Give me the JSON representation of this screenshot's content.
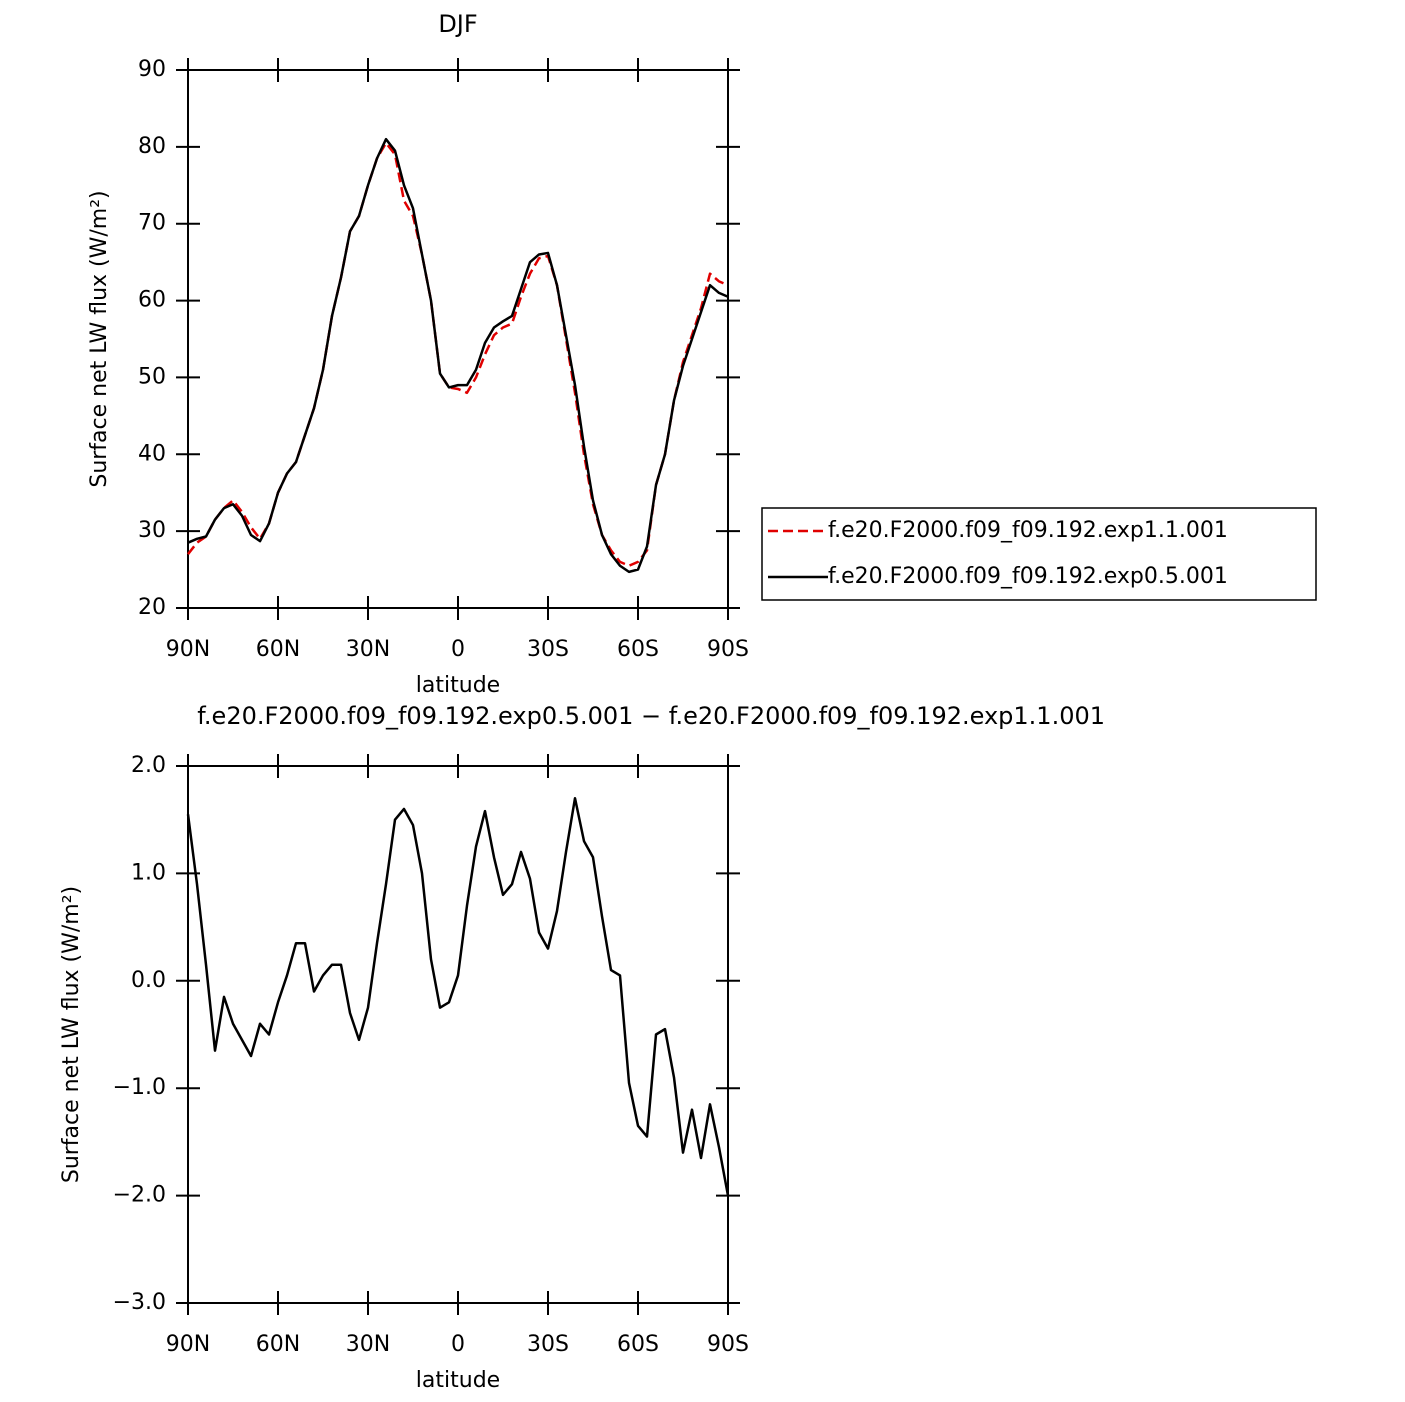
{
  "chart_data": [
    {
      "type": "line",
      "title": "DJF",
      "xlabel": "latitude",
      "ylabel": "Surface net LW flux (W/m²)",
      "legend": "right",
      "x": [
        90,
        87,
        84,
        81,
        78,
        75,
        72,
        69,
        66,
        63,
        60,
        57,
        54,
        51,
        48,
        45,
        42,
        39,
        36,
        33,
        30,
        27,
        24,
        21,
        18,
        15,
        12,
        9,
        6,
        3,
        0,
        -3,
        -6,
        -9,
        -12,
        -15,
        -18,
        -21,
        -24,
        -27,
        -30,
        -33,
        -36,
        -39,
        -42,
        -45,
        -48,
        -51,
        -54,
        -57,
        -60,
        -63,
        -66,
        -69,
        -72,
        -75,
        -78,
        -81,
        -84,
        -87,
        -90
      ],
      "xlim": [
        90,
        -90
      ],
      "xticks": [
        {
          "value": 90,
          "label": "90N"
        },
        {
          "value": 60,
          "label": "60N"
        },
        {
          "value": 30,
          "label": "30N"
        },
        0,
        {
          "value": -30,
          "label": "30S"
        },
        {
          "value": -60,
          "label": "60S"
        },
        {
          "value": -90,
          "label": "90S"
        }
      ],
      "ylim": [
        20,
        90
      ],
      "yticks": [
        20,
        30,
        40,
        50,
        60,
        70,
        80,
        90
      ],
      "series": [
        {
          "name": "f.e20.F2000.f09_f09.192.exp1.1.001",
          "color": "#e00000",
          "dash": true,
          "values": [
            27,
            28.5,
            29.3,
            31.5,
            33,
            34,
            32.5,
            30.5,
            29,
            31,
            35,
            37.5,
            39,
            42.5,
            46,
            51,
            58,
            63,
            69,
            71,
            75,
            78.5,
            80.5,
            79,
            73,
            71,
            66,
            60,
            50.5,
            48.7,
            48.5,
            48,
            50,
            53,
            55.5,
            56.5,
            57,
            60.5,
            63.5,
            65.5,
            65.8,
            62,
            55,
            48,
            40,
            33.5,
            29.5,
            27.5,
            26,
            25.5,
            26,
            27.5,
            36,
            40,
            47,
            52,
            55.5,
            59,
            63.5,
            62.5,
            62
          ]
        },
        {
          "name": "f.e20.F2000.f09_f09.192.exp0.5.001",
          "color": "#000000",
          "dash": false,
          "values": [
            28.5,
            29,
            29.3,
            31.5,
            33,
            33.5,
            32,
            29.5,
            28.7,
            31,
            35,
            37.5,
            39,
            42.5,
            46,
            51,
            58,
            63,
            69,
            71,
            75,
            78.5,
            81,
            79.5,
            75,
            72,
            66,
            60,
            50.5,
            48.7,
            49,
            49,
            51,
            54.5,
            56.5,
            57.3,
            58,
            61.5,
            65,
            66,
            66.2,
            62,
            55.5,
            49,
            41,
            34,
            29.5,
            27,
            25.5,
            24.7,
            25,
            28,
            36,
            40,
            47,
            51.5,
            55,
            58.5,
            62,
            61,
            60.5
          ]
        }
      ]
    },
    {
      "type": "line",
      "title": "f.e20.F2000.f09_f09.192.exp0.5.001 − f.e20.F2000.f09_f09.192.exp1.1.001",
      "xlabel": "latitude",
      "ylabel": "Surface net LW flux (W/m²)",
      "x": [
        90,
        87,
        84,
        81,
        78,
        75,
        72,
        69,
        66,
        63,
        60,
        57,
        54,
        51,
        48,
        45,
        42,
        39,
        36,
        33,
        30,
        27,
        24,
        21,
        18,
        15,
        12,
        9,
        6,
        3,
        0,
        -3,
        -6,
        -9,
        -12,
        -15,
        -18,
        -21,
        -24,
        -27,
        -30,
        -33,
        -36,
        -39,
        -42,
        -45,
        -48,
        -51,
        -54,
        -57,
        -60,
        -63,
        -66,
        -69,
        -72,
        -75,
        -78,
        -81,
        -84,
        -87,
        -90
      ],
      "xlim": [
        90,
        -90
      ],
      "xticks": [
        {
          "value": 90,
          "label": "90N"
        },
        {
          "value": 60,
          "label": "60N"
        },
        {
          "value": 30,
          "label": "30N"
        },
        0,
        {
          "value": -30,
          "label": "30S"
        },
        {
          "value": -60,
          "label": "60S"
        },
        {
          "value": -90,
          "label": "90S"
        }
      ],
      "ylim": [
        -3,
        2
      ],
      "yticks": [
        {
          "value": -3,
          "label": "−3.0"
        },
        {
          "value": -2,
          "label": "−2.0"
        },
        {
          "value": -1,
          "label": "−1.0"
        },
        {
          "value": 0,
          "label": "0.0"
        },
        {
          "value": 1,
          "label": "1.0"
        },
        {
          "value": 2,
          "label": "2.0"
        }
      ],
      "series": [
        {
          "color": "#000000",
          "values": [
            1.55,
            0.9,
            0.15,
            -0.65,
            -0.15,
            -0.4,
            -0.55,
            -0.7,
            -0.4,
            -0.5,
            -0.2,
            0.05,
            0.35,
            0.35,
            -0.1,
            0.05,
            0.15,
            0.15,
            -0.3,
            -0.55,
            -0.25,
            0.35,
            0.9,
            1.5,
            1.6,
            1.45,
            1.0,
            0.2,
            -0.25,
            -0.2,
            0.05,
            0.7,
            1.25,
            1.58,
            1.15,
            0.8,
            0.9,
            1.2,
            0.95,
            0.45,
            0.3,
            0.65,
            1.2,
            1.7,
            1.3,
            1.15,
            0.6,
            0.1,
            0.05,
            -0.95,
            -1.35,
            -1.45,
            -0.5,
            -0.45,
            -0.9,
            -1.6,
            -1.2,
            -1.65,
            -1.15,
            -1.55,
            -2.0
          ]
        }
      ]
    }
  ]
}
